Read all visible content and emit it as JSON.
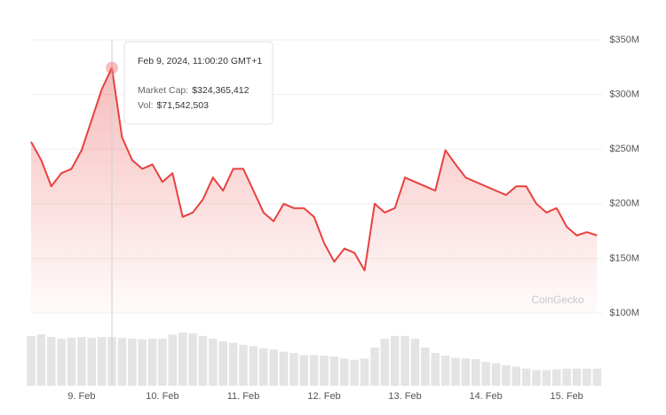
{
  "chart_data": {
    "type": "line",
    "tooltip": "Feb 9, 2024, 11:00:20 GMT+1",
    "watermark": "CoinGecko",
    "categories": [
      null,
      null,
      null,
      null,
      null,
      "9. Feb",
      null,
      null,
      null,
      null,
      null,
      null,
      null,
      "10. Feb",
      null,
      null,
      null,
      null,
      null,
      null,
      null,
      "11. Feb",
      null,
      null,
      null,
      null,
      null,
      null,
      null,
      "12. Feb",
      null,
      null,
      null,
      null,
      null,
      null,
      null,
      "13. Feb",
      null,
      null,
      null,
      null,
      null,
      null,
      null,
      "14. Feb",
      null,
      null,
      null,
      null,
      null,
      null,
      null,
      "15. Feb",
      null,
      null,
      null
    ],
    "series": [
      {
        "name": "Market Cap:",
        "type": "line",
        "color": "#e8413f",
        "values": [
          256700000,
          240000000,
          216000000,
          228000000,
          232000000,
          249000000,
          277000000,
          305000000,
          324365412,
          261000000,
          240000000,
          232000000,
          236000000,
          220000000,
          228000000,
          188000000,
          192000000,
          204000000,
          224000000,
          212000000,
          232000000,
          232000000,
          212000000,
          192000000,
          184000000,
          200000000,
          196000000,
          196000000,
          188000000,
          164000000,
          147000000,
          159000000,
          155000000,
          139000000,
          200000000,
          192000000,
          196000000,
          224000000,
          220000000,
          216000000,
          212000000,
          249000000,
          236000000,
          224000000,
          220000000,
          216000000,
          212000000,
          208000000,
          216000000,
          216000000,
          200000000,
          192000000,
          196000000,
          179000000,
          171000000,
          174000000,
          171000000
        ],
        "value_labels": [
          null,
          null,
          null,
          null,
          null,
          null,
          null,
          null,
          "$324,365,412",
          null,
          null,
          null,
          null,
          null,
          null,
          null,
          null,
          null,
          null,
          null,
          null,
          null,
          null,
          null,
          null,
          null,
          null,
          null,
          null,
          null,
          null,
          null,
          null,
          null,
          null,
          null,
          null,
          null,
          null,
          null,
          null,
          null,
          null,
          null,
          null,
          null,
          null,
          null,
          null,
          null,
          null,
          null,
          null,
          null,
          null,
          null,
          null
        ]
      },
      {
        "name": "Vol:",
        "type": "bar",
        "color": "#e4e4e4",
        "values": [
          72800000,
          75300000,
          71500000,
          69000000,
          70300000,
          71500000,
          70300000,
          71500000,
          71542503,
          70000000,
          69000000,
          68000000,
          69000000,
          69000000,
          75000000,
          78000000,
          77000000,
          73000000,
          69000000,
          65000000,
          63000000,
          60000000,
          58000000,
          55000000,
          53000000,
          50000000,
          48000000,
          45000000,
          45000000,
          44000000,
          43000000,
          40000000,
          38000000,
          40000000,
          56000000,
          69000000,
          73000000,
          73000000,
          69000000,
          56000000,
          48000000,
          44000000,
          41000000,
          40000000,
          39000000,
          35000000,
          33000000,
          30000000,
          28000000,
          25000000,
          23000000,
          23000000,
          24000000,
          25000000,
          25000000,
          25000000,
          25000000
        ],
        "value_labels": [
          null,
          null,
          null,
          null,
          null,
          null,
          null,
          null,
          "$71,542,503",
          null,
          null,
          null,
          null,
          null,
          null,
          null,
          null,
          null,
          null,
          null,
          null,
          null,
          null,
          null,
          null,
          null,
          null,
          null,
          null,
          null,
          null,
          null,
          null,
          null,
          null,
          null,
          null,
          null,
          null,
          null,
          null,
          null,
          null,
          null,
          null,
          null,
          null,
          null,
          null,
          null,
          null,
          null,
          null,
          null,
          null,
          null,
          null
        ]
      }
    ],
    "ylim": [
      100000000,
      350000000
    ],
    "yticks": [
      {
        "value": 100000000,
        "label": "$100M"
      },
      {
        "value": 150000000,
        "label": "$150M"
      },
      {
        "value": 200000000,
        "label": "$200M"
      },
      {
        "value": 250000000,
        "label": "$250M"
      },
      {
        "value": 300000000,
        "label": "$300M"
      },
      {
        "value": 350000000,
        "label": "$350M"
      }
    ],
    "grid": true
  }
}
